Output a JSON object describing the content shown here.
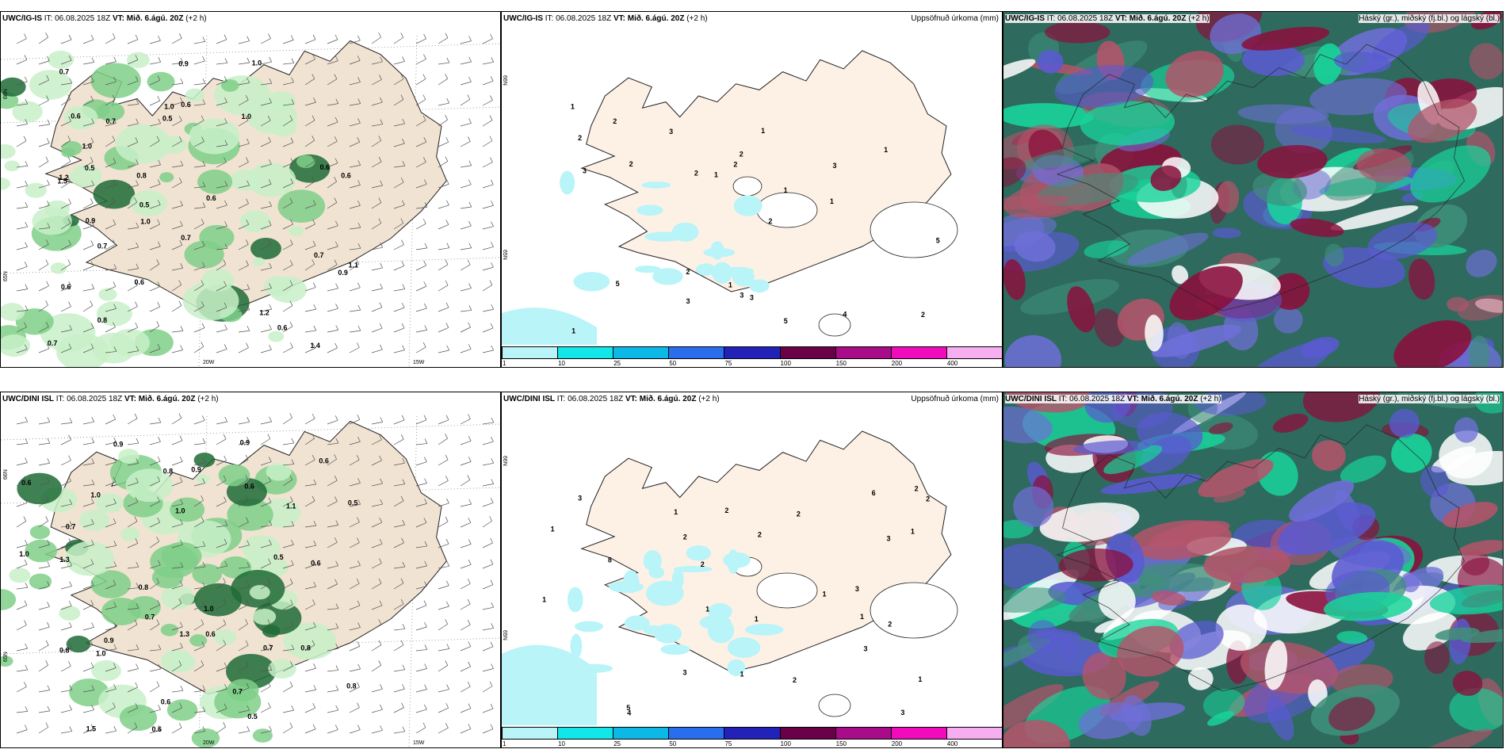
{
  "rows": [
    {
      "model": "UWC/IG-IS",
      "it_label": "IT:",
      "it_value": "06.08.2025 18Z",
      "vt_label": "VT:",
      "vt_value": "Mið. 6.ágú. 20Z",
      "offset": "(+2 h)",
      "precip_values": [
        "0.5",
        "0.6",
        "0.7",
        "0.9",
        "1.2",
        "0.6",
        "1.0",
        "0.5",
        "1.5",
        "0.8",
        "0.7",
        "1.4",
        "0.6",
        "0.7",
        "0.9",
        "0.6",
        "0.8",
        "1.0",
        "0.7",
        "0.6",
        "0.5",
        "1.1",
        "1.0",
        "0.7",
        "0.6",
        "1.0",
        "0.9",
        "0.7",
        "0.6",
        "0.6",
        "1.2",
        "1.0"
      ],
      "accum_values": [
        "1",
        "1",
        "2",
        "5",
        "3",
        "3",
        "3",
        "1",
        "2",
        "2",
        "3",
        "3",
        "1",
        "2",
        "2",
        "3",
        "5",
        "2",
        "2",
        "2",
        "1",
        "4",
        "5",
        "2",
        "1",
        "1",
        "1"
      ]
    },
    {
      "model": "UWC/DINI ISL",
      "it_label": "IT:",
      "it_value": "06.08.2025 18Z",
      "vt_label": "VT:",
      "vt_value": "Mið. 6.ágú. 20Z",
      "offset": "(+2 h)",
      "precip_values": [
        "0.5",
        "0.6",
        "0.9",
        "0.6",
        "0.5",
        "1.5",
        "0.7",
        "0.8",
        "1.0",
        "0.6",
        "1.1",
        "0.6",
        "0.9",
        "0.7",
        "0.6",
        "0.8",
        "1.0",
        "0.6",
        "0.8",
        "1.3",
        "0.5",
        "1.0",
        "0.8",
        "0.9",
        "1.0",
        "0.7",
        "1.3",
        "0.6",
        "0.8",
        "1.0",
        "0.9",
        "0.7"
      ],
      "accum_values": [
        "1",
        "2",
        "1",
        "1",
        "3",
        "3",
        "2",
        "2",
        "2",
        "4",
        "6",
        "5",
        "1",
        "1",
        "2",
        "1",
        "1",
        "3",
        "2",
        "1",
        "1",
        "2",
        "3",
        "3",
        "2",
        "2",
        "8",
        "3",
        "1"
      ]
    }
  ],
  "accum_title": "Uppsöfnuð úrkoma (mm)",
  "cloud_title": "Háský (gr.), miðský (fj.bl.) og lágský (bl.)",
  "colorbar": {
    "ticks": [
      "1",
      "10",
      "25",
      "50",
      "75",
      "100",
      "150",
      "200",
      "400"
    ],
    "colors": [
      "#b8f4f8",
      "#12e6e8",
      "#0cb8e6",
      "#2a6ef0",
      "#2222b8",
      "#6a0048",
      "#a80c88",
      "#f00cbc",
      "#f7aef0"
    ]
  },
  "axis_labels": {
    "lon_20": "20W",
    "lon_15": "15W",
    "lat_66": "66N",
    "lat_65": "65N"
  },
  "colors": {
    "land": "#f1e3d2",
    "land_accum": "#fdf1e6",
    "precip_light": "#c8f0c8",
    "precip_mid": "#7fcf88",
    "precip_dark": "#1f6b36",
    "cloud_base": "#2e6a5e",
    "cloud_high": "#8b0f3c",
    "cloud_mid": "#5a5ad2",
    "cloud_low": "#18d49a"
  }
}
